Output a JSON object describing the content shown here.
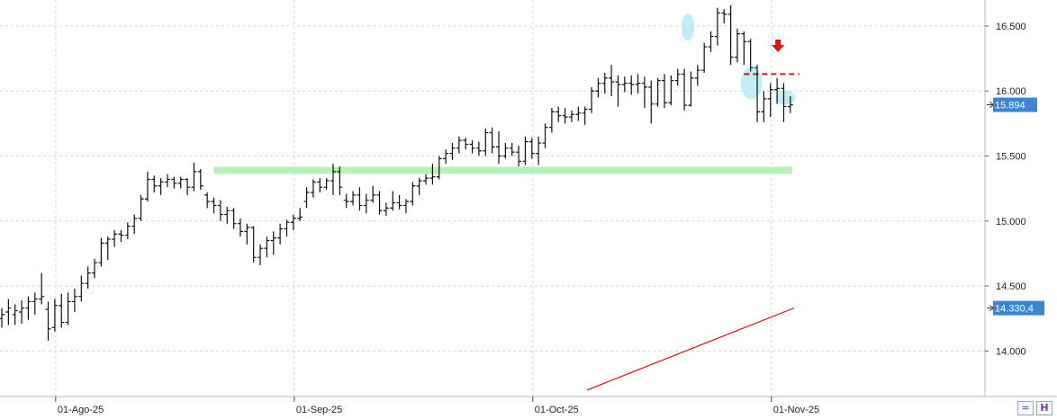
{
  "colors": {
    "background": "#ffffff",
    "grid": "#cfd6df",
    "bars": "#111111",
    "moving_average": "#cc1111",
    "support_band": "#b8f0b8",
    "highlight": "#bfeef7",
    "arrow": "#e01010",
    "dashed_level": "#e01010",
    "last_price_label": "#3a86d6",
    "ma_label": "#3a86d6"
  },
  "chart_data": {
    "type": "ohlc",
    "y_axis": {
      "side": "right",
      "range": [
        13650,
        16700
      ],
      "ticks": [
        "14.000",
        "14.500",
        "15.000",
        "15.500",
        "16.000",
        "16.500"
      ],
      "tick_values": [
        14000,
        14500,
        15000,
        15500,
        16000,
        16500
      ]
    },
    "x_axis": {
      "tick_labels": [
        "01-Ago-25",
        "01-Sep-25",
        "01-Oct-25",
        "01-Nov-25"
      ],
      "tick_bar_index": [
        8,
        44,
        80,
        116
      ]
    },
    "grid": true,
    "last_price_label": "15.894",
    "moving_average_label": "14.330,4",
    "ohlc": [
      [
        14250,
        14330,
        14180,
        14280
      ],
      [
        14300,
        14400,
        14200,
        14330
      ],
      [
        14280,
        14360,
        14200,
        14310
      ],
      [
        14300,
        14390,
        14210,
        14330
      ],
      [
        14330,
        14420,
        14240,
        14380
      ],
      [
        14380,
        14450,
        14280,
        14400
      ],
      [
        14400,
        14600,
        14360,
        14420
      ],
      [
        14320,
        14380,
        14080,
        14170
      ],
      [
        14180,
        14400,
        14150,
        14350
      ],
      [
        14350,
        14440,
        14180,
        14220
      ],
      [
        14220,
        14450,
        14200,
        14380
      ],
      [
        14380,
        14480,
        14300,
        14420
      ],
      [
        14420,
        14580,
        14380,
        14520
      ],
      [
        14520,
        14650,
        14480,
        14600
      ],
      [
        14600,
        14710,
        14560,
        14680
      ],
      [
        14680,
        14870,
        14650,
        14830
      ],
      [
        14830,
        14880,
        14700,
        14860
      ],
      [
        14860,
        14930,
        14800,
        14900
      ],
      [
        14900,
        14930,
        14840,
        14890
      ],
      [
        14890,
        14990,
        14860,
        14960
      ],
      [
        14960,
        15050,
        14900,
        15020
      ],
      [
        15020,
        15200,
        15000,
        15170
      ],
      [
        15170,
        15380,
        15150,
        15320
      ],
      [
        15320,
        15350,
        15220,
        15270
      ],
      [
        15270,
        15330,
        15200,
        15300
      ],
      [
        15300,
        15360,
        15260,
        15320
      ],
      [
        15320,
        15340,
        15250,
        15290
      ],
      [
        15290,
        15340,
        15250,
        15320
      ],
      [
        15320,
        15330,
        15200,
        15260
      ],
      [
        15260,
        15450,
        15230,
        15380
      ],
      [
        15380,
        15400,
        15240,
        15270
      ],
      [
        15200,
        15220,
        15100,
        15150
      ],
      [
        15150,
        15180,
        15060,
        15120
      ],
      [
        15120,
        15160,
        15000,
        15050
      ],
      [
        15050,
        15110,
        14980,
        15080
      ],
      [
        15080,
        15100,
        14940,
        14980
      ],
      [
        14980,
        15020,
        14880,
        14920
      ],
      [
        14920,
        14980,
        14820,
        14950
      ],
      [
        14950,
        14960,
        14680,
        14720
      ],
      [
        14720,
        14820,
        14660,
        14790
      ],
      [
        14790,
        14880,
        14720,
        14850
      ],
      [
        14850,
        14920,
        14740,
        14870
      ],
      [
        14870,
        14980,
        14820,
        14940
      ],
      [
        14940,
        15010,
        14880,
        14990
      ],
      [
        14990,
        15050,
        14930,
        15020
      ],
      [
        15020,
        15100,
        15000,
        15030
      ],
      [
        15150,
        15260,
        15100,
        15220
      ],
      [
        15220,
        15320,
        15180,
        15300
      ],
      [
        15300,
        15330,
        15220,
        15260
      ],
      [
        15260,
        15330,
        15240,
        15310
      ],
      [
        15310,
        15440,
        15200,
        15380
      ],
      [
        15380,
        15420,
        15200,
        15260
      ],
      [
        15160,
        15210,
        15100,
        15150
      ],
      [
        15150,
        15230,
        15120,
        15200
      ],
      [
        15200,
        15260,
        15080,
        15120
      ],
      [
        15120,
        15210,
        15060,
        15160
      ],
      [
        15160,
        15270,
        15140,
        15200
      ],
      [
        15200,
        15230,
        15050,
        15080
      ],
      [
        15080,
        15140,
        15040,
        15100
      ],
      [
        15100,
        15230,
        15080,
        15140
      ],
      [
        15140,
        15200,
        15090,
        15120
      ],
      [
        15120,
        15170,
        15060,
        15150
      ],
      [
        15150,
        15300,
        15120,
        15270
      ],
      [
        15270,
        15330,
        15200,
        15310
      ],
      [
        15310,
        15360,
        15280,
        15330
      ],
      [
        15330,
        15440,
        15280,
        15340
      ],
      [
        15340,
        15500,
        15320,
        15480
      ],
      [
        15480,
        15550,
        15440,
        15520
      ],
      [
        15520,
        15600,
        15470,
        15560
      ],
      [
        15560,
        15650,
        15520,
        15620
      ],
      [
        15620,
        15640,
        15550,
        15590
      ],
      [
        15590,
        15620,
        15520,
        15560
      ],
      [
        15560,
        15610,
        15500,
        15540
      ],
      [
        15540,
        15710,
        15500,
        15680
      ],
      [
        15680,
        15720,
        15520,
        15570
      ],
      [
        15570,
        15690,
        15440,
        15500
      ],
      [
        15500,
        15600,
        15480,
        15560
      ],
      [
        15560,
        15600,
        15500,
        15530
      ],
      [
        15530,
        15580,
        15420,
        15460
      ],
      [
        15460,
        15650,
        15430,
        15610
      ],
      [
        15610,
        15640,
        15480,
        15520
      ],
      [
        15520,
        15650,
        15430,
        15600
      ],
      [
        15600,
        15750,
        15560,
        15720
      ],
      [
        15720,
        15870,
        15680,
        15840
      ],
      [
        15840,
        15880,
        15760,
        15810
      ],
      [
        15810,
        15870,
        15750,
        15800
      ],
      [
        15800,
        15850,
        15760,
        15820
      ],
      [
        15820,
        15880,
        15770,
        15830
      ],
      [
        15830,
        15880,
        15740,
        15860
      ],
      [
        15860,
        16030,
        15830,
        16000
      ],
      [
        16000,
        16100,
        15950,
        16060
      ],
      [
        16060,
        16140,
        15980,
        16100
      ],
      [
        16100,
        16200,
        15960,
        16070
      ],
      [
        16070,
        16120,
        15880,
        16050
      ],
      [
        16050,
        16110,
        15990,
        16060
      ],
      [
        16060,
        16120,
        15970,
        16050
      ],
      [
        16050,
        16130,
        15980,
        16060
      ],
      [
        16060,
        16110,
        15870,
        16030
      ],
      [
        16030,
        16080,
        15750,
        15900
      ],
      [
        15900,
        16100,
        15880,
        16080
      ],
      [
        16080,
        16130,
        15870,
        15910
      ],
      [
        15910,
        16120,
        15890,
        16080
      ],
      [
        16080,
        16170,
        16040,
        16130
      ],
      [
        16130,
        16170,
        15850,
        15890
      ],
      [
        15890,
        16150,
        15880,
        16100
      ],
      [
        16100,
        16200,
        16040,
        16160
      ],
      [
        16160,
        16370,
        16140,
        16340
      ],
      [
        16340,
        16460,
        16300,
        16420
      ],
      [
        16420,
        16640,
        16350,
        16600
      ],
      [
        16600,
        16630,
        16520,
        16590
      ],
      [
        16590,
        16660,
        16200,
        16260
      ],
      [
        16260,
        16480,
        16220,
        16440
      ],
      [
        16440,
        16460,
        16200,
        16380
      ],
      [
        16380,
        16400,
        16150,
        16180
      ],
      [
        16180,
        16200,
        15760,
        15840
      ],
      [
        15840,
        16000,
        15760,
        15940
      ],
      [
        15940,
        16060,
        15800,
        16010
      ],
      [
        16010,
        16100,
        15900,
        16020
      ],
      [
        16020,
        16060,
        15760,
        15880
      ],
      [
        15880,
        15960,
        15830,
        15894
      ]
    ],
    "moving_average": {
      "start_value": 13700,
      "end_value": 14330.4
    },
    "annotations": {
      "support_level": 15390,
      "resistance_dash_level": 16130,
      "arrow": "down"
    }
  }
}
